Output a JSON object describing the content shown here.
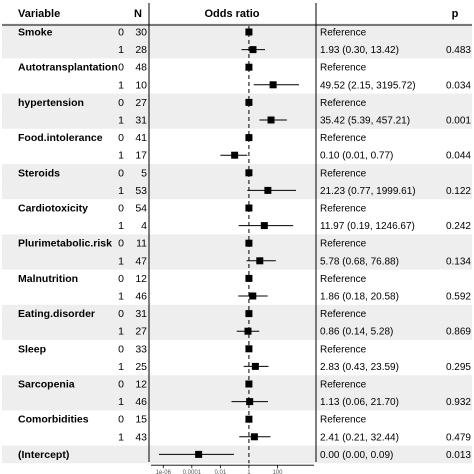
{
  "header": {
    "variable_label": "Variable",
    "n_label": "N",
    "or_label": "Odds ratio",
    "p_label": "p"
  },
  "axis": {
    "scale": "log10",
    "range": [
      1e-07,
      50000
    ],
    "reference_value": 1,
    "ticks": [
      {
        "value": 1e-06,
        "label": "1e-06"
      },
      {
        "value": 0.0001,
        "label": "0.0001"
      },
      {
        "value": 0.01,
        "label": "0.01"
      },
      {
        "value": 1,
        "label": "1"
      },
      {
        "value": 100,
        "label": "100"
      }
    ]
  },
  "colors": {
    "row_shade": "#eeeeee",
    "marker": "#000000",
    "reference_line": "#000000"
  },
  "chart_data": {
    "type": "forest",
    "rows": [
      {
        "variable": "Smoke",
        "level": "0",
        "n": "30",
        "ref": true,
        "text": "Reference",
        "p": ""
      },
      {
        "variable": "",
        "level": "1",
        "n": "28",
        "ref": false,
        "or": 1.93,
        "lo": 0.3,
        "hi": 13.42,
        "text": "1.93 (0.30, 13.42)",
        "p": "0.483"
      },
      {
        "variable": "Autotransplantation",
        "level": "0",
        "n": "48",
        "ref": true,
        "text": "Reference",
        "p": ""
      },
      {
        "variable": "",
        "level": "1",
        "n": "10",
        "ref": false,
        "or": 49.52,
        "lo": 2.15,
        "hi": 3195.72,
        "text": "49.52 (2.15, 3195.72)",
        "p": "0.034"
      },
      {
        "variable": "hypertension",
        "level": "0",
        "n": "27",
        "ref": true,
        "text": "Reference",
        "p": ""
      },
      {
        "variable": "",
        "level": "1",
        "n": "31",
        "ref": false,
        "or": 35.42,
        "lo": 5.39,
        "hi": 457.21,
        "text": "35.42 (5.39, 457.21)",
        "p": "0.001"
      },
      {
        "variable": "Food.intolerance",
        "level": "0",
        "n": "41",
        "ref": true,
        "text": "Reference",
        "p": ""
      },
      {
        "variable": "",
        "level": "1",
        "n": "17",
        "ref": false,
        "or": 0.1,
        "lo": 0.01,
        "hi": 0.77,
        "text": "0.10 (0.01, 0.77)",
        "p": "0.044"
      },
      {
        "variable": "Steroids",
        "level": "0",
        "n": "5",
        "ref": true,
        "text": "Reference",
        "p": ""
      },
      {
        "variable": "",
        "level": "1",
        "n": "53",
        "ref": false,
        "or": 21.23,
        "lo": 0.77,
        "hi": 1999.61,
        "text": "21.23 (0.77, 1999.61)",
        "p": "0.122"
      },
      {
        "variable": "Cardiotoxicity",
        "level": "0",
        "n": "54",
        "ref": true,
        "text": "Reference",
        "p": ""
      },
      {
        "variable": "",
        "level": "1",
        "n": "4",
        "ref": false,
        "or": 11.97,
        "lo": 0.19,
        "hi": 1246.67,
        "text": "11.97 (0.19, 1246.67)",
        "p": "0.242"
      },
      {
        "variable": "Plurimetabolic.risk",
        "level": "0",
        "n": "11",
        "ref": true,
        "text": "Reference",
        "p": ""
      },
      {
        "variable": "",
        "level": "1",
        "n": "47",
        "ref": false,
        "or": 5.78,
        "lo": 0.68,
        "hi": 76.88,
        "text": "5.78 (0.68, 76.88)",
        "p": "0.134"
      },
      {
        "variable": "Malnutrition",
        "level": "0",
        "n": "12",
        "ref": true,
        "text": "Reference",
        "p": ""
      },
      {
        "variable": "",
        "level": "1",
        "n": "46",
        "ref": false,
        "or": 1.86,
        "lo": 0.18,
        "hi": 20.58,
        "text": "1.86 (0.18, 20.58)",
        "p": "0.592"
      },
      {
        "variable": "Eating.disorder",
        "level": "0",
        "n": "31",
        "ref": true,
        "text": "Reference",
        "p": ""
      },
      {
        "variable": "",
        "level": "1",
        "n": "27",
        "ref": false,
        "or": 0.86,
        "lo": 0.14,
        "hi": 5.28,
        "text": "0.86 (0.14, 5.28)",
        "p": "0.869"
      },
      {
        "variable": "Sleep",
        "level": "0",
        "n": "33",
        "ref": true,
        "text": "Reference",
        "p": ""
      },
      {
        "variable": "",
        "level": "1",
        "n": "25",
        "ref": false,
        "or": 2.83,
        "lo": 0.43,
        "hi": 23.59,
        "text": "2.83 (0.43, 23.59)",
        "p": "0.295"
      },
      {
        "variable": "Sarcopenia",
        "level": "0",
        "n": "12",
        "ref": true,
        "text": "Reference",
        "p": ""
      },
      {
        "variable": "",
        "level": "1",
        "n": "46",
        "ref": false,
        "or": 1.13,
        "lo": 0.06,
        "hi": 21.7,
        "text": "1.13 (0.06, 21.70)",
        "p": "0.932"
      },
      {
        "variable": "Comorbidities",
        "level": "0",
        "n": "15",
        "ref": true,
        "text": "Reference",
        "p": ""
      },
      {
        "variable": "",
        "level": "1",
        "n": "43",
        "ref": false,
        "or": 2.41,
        "lo": 0.21,
        "hi": 32.44,
        "text": "2.41 (0.21, 32.44)",
        "p": "0.479"
      },
      {
        "variable": "(Intercept)",
        "level": "",
        "n": "",
        "ref": false,
        "or": 0.0,
        "lo": 0.0,
        "hi": 0.09,
        "text": "0.00 (0.00, 0.09)",
        "p": "0.013",
        "plot_or": 0.0003,
        "plot_lo": 5e-07,
        "plot_hi": 0.09
      }
    ]
  }
}
